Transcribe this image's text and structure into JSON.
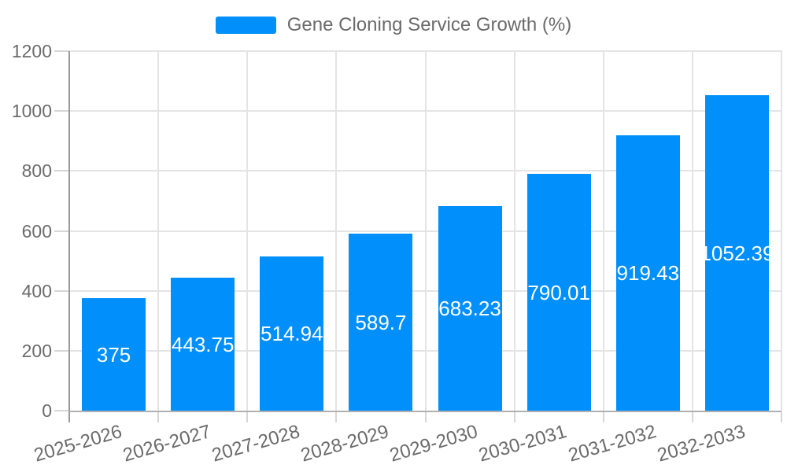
{
  "legend": {
    "label": "Gene Cloning Service Growth (%)",
    "swatch_color": "#008FFB"
  },
  "chart_data": {
    "type": "bar",
    "title": "Gene Cloning Service Growth (%)",
    "categories": [
      "2025-2026",
      "2026-2027",
      "2027-2028",
      "2028-2029",
      "2029-2030",
      "2030-2031",
      "2031-2032",
      "2032-2033"
    ],
    "values": [
      375,
      443.75,
      514.94,
      589.7,
      683.23,
      790.01,
      919.43,
      1052.39
    ],
    "value_labels": [
      "375",
      "443.75",
      "514.94",
      "589.7",
      "683.23",
      "790.01",
      "919.43",
      "1052.39"
    ],
    "xlabel": "",
    "ylabel": "",
    "ylim": [
      0,
      1200
    ],
    "ytick_step": 200,
    "ytick_labels": [
      "0",
      "200",
      "400",
      "600",
      "800",
      "1000",
      "1200"
    ],
    "grid": true,
    "legend_position": "top",
    "bar_color": "#008FFB",
    "bar_label_color": "#ffffff",
    "axis_text_color": "#6b6b6b",
    "grid_color": "#e4e4e4"
  }
}
